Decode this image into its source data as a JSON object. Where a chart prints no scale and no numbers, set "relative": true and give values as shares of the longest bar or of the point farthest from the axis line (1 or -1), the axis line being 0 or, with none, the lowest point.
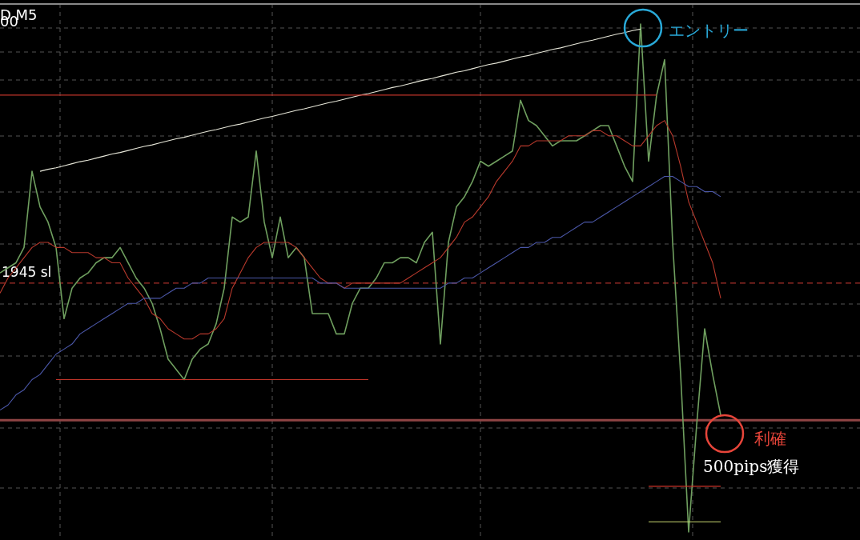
{
  "chart_data": {
    "type": "line",
    "relative": true,
    "grid": true,
    "legend": false,
    "marker": "none",
    "line_style": "solid",
    "categories": [
      null,
      null,
      null,
      null,
      null,
      null,
      null,
      null,
      null,
      null,
      null,
      null,
      null,
      null,
      null,
      null,
      null,
      null,
      null,
      null,
      null,
      null,
      null,
      null,
      null,
      null,
      null,
      null,
      null,
      null,
      null,
      null,
      null,
      null,
      null,
      null,
      null,
      null,
      null,
      null,
      null,
      null,
      null,
      null,
      null,
      null,
      null,
      null,
      null,
      null,
      null,
      null,
      null,
      null,
      null,
      null,
      null,
      null,
      null,
      null,
      null,
      null,
      null,
      null,
      null,
      null,
      null,
      null,
      null,
      null,
      null,
      null,
      null,
      null,
      null,
      null,
      null,
      null,
      null,
      null,
      null,
      null,
      null,
      null,
      null,
      null,
      null,
      null,
      null,
      null,
      null
    ],
    "series": [
      {
        "color": "#6f9f5f",
        "values": [
          0.51,
          0.52,
          0.53,
          0.56,
          0.71,
          0.64,
          0.61,
          0.56,
          0.42,
          0.48,
          0.5,
          0.51,
          0.53,
          0.54,
          0.54,
          0.56,
          0.53,
          0.5,
          0.48,
          0.45,
          0.4,
          0.34,
          0.32,
          0.3,
          0.34,
          0.36,
          0.37,
          0.41,
          0.48,
          0.62,
          0.61,
          0.62,
          0.75,
          0.61,
          0.54,
          0.62,
          0.54,
          0.56,
          0.54,
          0.43,
          0.43,
          0.43,
          0.39,
          0.39,
          0.45,
          0.48,
          0.48,
          0.5,
          0.53,
          0.53,
          0.54,
          0.54,
          0.53,
          0.57,
          0.59,
          0.37,
          0.57,
          0.64,
          0.66,
          0.69,
          0.73,
          0.72,
          0.73,
          0.74,
          0.75,
          0.85,
          0.81,
          0.8,
          0.78,
          0.76,
          0.77,
          0.77,
          0.77,
          0.78,
          0.79,
          0.8,
          0.8,
          0.76,
          0.72,
          0.69,
          1,
          0.73,
          0.86,
          0.93,
          0.57,
          0.31,
          0,
          0.21,
          0.4,
          0.31,
          0.23
        ]
      },
      {
        "color": "#b8392c",
        "values": [
          0.47,
          0.5,
          0.52,
          0.54,
          0.56,
          0.57,
          0.57,
          0.56,
          0.56,
          0.55,
          0.55,
          0.55,
          0.54,
          0.54,
          0.53,
          0.53,
          0.5,
          0.48,
          0.46,
          0.43,
          0.42,
          0.4,
          0.39,
          0.38,
          0.38,
          0.39,
          0.39,
          0.4,
          0.42,
          0.48,
          0.51,
          0.54,
          0.56,
          0.57,
          0.57,
          0.57,
          0.57,
          0.56,
          0.54,
          0.52,
          0.5,
          0.49,
          0.49,
          0.48,
          0.49,
          0.49,
          0.49,
          0.49,
          0.49,
          0.49,
          0.49,
          0.5,
          0.51,
          0.52,
          0.53,
          0.54,
          0.56,
          0.58,
          0.61,
          0.62,
          0.64,
          0.66,
          0.69,
          0.71,
          0.73,
          0.76,
          0.76,
          0.77,
          0.77,
          0.77,
          0.77,
          0.78,
          0.78,
          0.78,
          0.79,
          0.79,
          0.78,
          0.78,
          0.77,
          0.76,
          0.76,
          0.78,
          0.8,
          0.81,
          0.78,
          0.72,
          0.65,
          0.61,
          0.57,
          0.53,
          0.46
        ]
      },
      {
        "color": "#4b57a8",
        "values": [
          0.24,
          0.25,
          0.27,
          0.28,
          0.3,
          0.31,
          0.33,
          0.35,
          0.36,
          0.37,
          0.39,
          0.4,
          0.41,
          0.42,
          0.43,
          0.44,
          0.45,
          0.45,
          0.46,
          0.46,
          0.46,
          0.47,
          0.48,
          0.48,
          0.49,
          0.49,
          0.5,
          0.5,
          0.5,
          0.5,
          0.5,
          0.5,
          0.5,
          0.5,
          0.5,
          0.5,
          0.5,
          0.5,
          0.5,
          0.5,
          0.49,
          0.49,
          0.49,
          0.48,
          0.48,
          0.48,
          0.48,
          0.48,
          0.48,
          0.48,
          0.48,
          0.48,
          0.48,
          0.48,
          0.48,
          0.48,
          0.49,
          0.49,
          0.5,
          0.5,
          0.51,
          0.52,
          0.53,
          0.54,
          0.55,
          0.56,
          0.56,
          0.57,
          0.57,
          0.58,
          0.58,
          0.59,
          0.6,
          0.61,
          0.61,
          0.62,
          0.63,
          0.64,
          0.65,
          0.66,
          0.67,
          0.68,
          0.69,
          0.7,
          0.7,
          0.69,
          0.68,
          0.68,
          0.67,
          0.67,
          0.66
        ]
      },
      {
        "color": "#e6e6d8",
        "values": [
          null,
          null,
          null,
          null,
          null,
          0.71,
          0.714,
          0.717,
          0.721,
          0.725,
          0.729,
          0.732,
          0.736,
          0.74,
          0.744,
          0.747,
          0.751,
          0.755,
          0.759,
          0.762,
          0.766,
          0.77,
          0.774,
          0.777,
          0.781,
          0.785,
          0.789,
          0.792,
          0.796,
          0.8,
          0.803,
          0.807,
          0.811,
          0.815,
          0.818,
          0.822,
          0.826,
          0.83,
          0.833,
          0.837,
          0.841,
          0.845,
          0.848,
          0.852,
          0.856,
          0.86,
          0.863,
          0.867,
          0.871,
          0.875,
          0.878,
          0.882,
          0.886,
          0.89,
          0.893,
          0.897,
          0.901,
          0.905,
          0.908,
          0.912,
          0.916,
          0.92,
          0.923,
          0.927,
          0.931,
          0.935,
          0.938,
          0.942,
          0.946,
          0.95,
          0.953,
          0.957,
          0.961,
          0.965,
          0.968,
          0.972,
          0.976,
          0.98,
          0.983,
          0.987,
          0.99,
          null,
          null,
          null,
          null,
          null,
          null,
          null,
          null,
          null,
          null
        ]
      },
      {
        "color": "#c0352a",
        "values": [
          0.86,
          0.86,
          0.86,
          0.86,
          0.86,
          0.86,
          0.86,
          0.86,
          0.86,
          0.86,
          0.86,
          0.86,
          0.86,
          0.86,
          0.86,
          0.86,
          0.86,
          0.86,
          0.86,
          0.86,
          0.86,
          0.86,
          0.86,
          0.86,
          0.86,
          0.86,
          0.86,
          0.86,
          0.86,
          0.86,
          0.86,
          0.86,
          0.86,
          0.86,
          0.86,
          0.86,
          0.86,
          0.86,
          0.86,
          0.86,
          0.86,
          0.86,
          0.86,
          0.86,
          0.86,
          0.86,
          0.86,
          0.86,
          0.86,
          0.86,
          0.86,
          0.86,
          0.86,
          0.86,
          0.86,
          0.86,
          0.86,
          0.86,
          0.86,
          0.86,
          0.86,
          0.86,
          0.86,
          0.86,
          0.86,
          0.86,
          0.86,
          0.86,
          0.86,
          0.86,
          0.86,
          0.86,
          0.86,
          0.86,
          0.86,
          0.86,
          0.86,
          0.86,
          0.86,
          0.86,
          0.86,
          0.86,
          0.86,
          null,
          null,
          null,
          null,
          null,
          null,
          null,
          null
        ]
      },
      {
        "color": "#c0352a",
        "values": [
          null,
          null,
          null,
          null,
          null,
          null,
          null,
          0.3,
          0.3,
          0.3,
          0.3,
          0.3,
          0.3,
          0.3,
          0.3,
          0.3,
          0.3,
          0.3,
          0.3,
          0.3,
          0.3,
          0.3,
          0.3,
          0.3,
          0.3,
          0.3,
          0.3,
          0.3,
          0.3,
          0.3,
          0.3,
          0.3,
          0.3,
          0.3,
          0.3,
          0.3,
          0.3,
          0.3,
          0.3,
          0.3,
          0.3,
          0.3,
          0.3,
          0.3,
          0.3,
          0.3,
          0.3,
          null,
          null,
          null,
          null,
          null,
          null,
          null,
          null,
          null,
          null,
          null,
          null,
          null,
          null,
          null,
          null,
          null,
          null,
          null,
          null,
          null,
          null,
          null,
          null,
          null,
          null,
          null,
          null,
          null,
          null,
          null,
          null,
          null,
          null,
          null,
          null,
          null,
          null,
          null,
          null,
          null,
          null,
          null,
          null
        ]
      },
      {
        "color": "#d0342a",
        "values": [
          null,
          null,
          null,
          null,
          null,
          null,
          null,
          null,
          null,
          null,
          null,
          null,
          null,
          null,
          null,
          null,
          null,
          null,
          null,
          null,
          null,
          null,
          null,
          null,
          null,
          null,
          null,
          null,
          null,
          null,
          null,
          null,
          null,
          null,
          null,
          null,
          null,
          null,
          null,
          null,
          null,
          null,
          null,
          null,
          null,
          null,
          null,
          null,
          null,
          null,
          null,
          null,
          null,
          null,
          null,
          null,
          null,
          null,
          null,
          null,
          null,
          null,
          null,
          null,
          null,
          null,
          null,
          null,
          null,
          null,
          null,
          null,
          null,
          null,
          null,
          null,
          null,
          null,
          null,
          null,
          null,
          0.09,
          0.09,
          0.09,
          0.09,
          0.09,
          0.09,
          0.09,
          0.09,
          0.09,
          0.09
        ]
      },
      {
        "color": "#c8d870",
        "values": [
          null,
          null,
          null,
          null,
          null,
          null,
          null,
          null,
          null,
          null,
          null,
          null,
          null,
          null,
          null,
          null,
          null,
          null,
          null,
          null,
          null,
          null,
          null,
          null,
          null,
          null,
          null,
          null,
          null,
          null,
          null,
          null,
          null,
          null,
          null,
          null,
          null,
          null,
          null,
          null,
          null,
          null,
          null,
          null,
          null,
          null,
          null,
          null,
          null,
          null,
          null,
          null,
          null,
          null,
          null,
          null,
          null,
          null,
          null,
          null,
          null,
          null,
          null,
          null,
          null,
          null,
          null,
          null,
          null,
          null,
          null,
          null,
          null,
          null,
          null,
          null,
          null,
          null,
          null,
          null,
          null,
          0.02,
          0.02,
          0.02,
          0.02,
          0.02,
          0.02,
          0.02,
          0.02,
          0.02,
          0.02
        ]
      }
    ],
    "ref_lines": [
      {
        "axis": "y",
        "value": 0.49,
        "label": "1945 sl",
        "color": "#a8302a",
        "line_style": "dashed"
      },
      {
        "axis": "y",
        "value": 0.22,
        "color": "#8f4444",
        "line_style": "solid"
      }
    ],
    "annotations": [
      "D M5",
      "00",
      "エントリー",
      "利確",
      "500pips獲得"
    ]
  }
}
